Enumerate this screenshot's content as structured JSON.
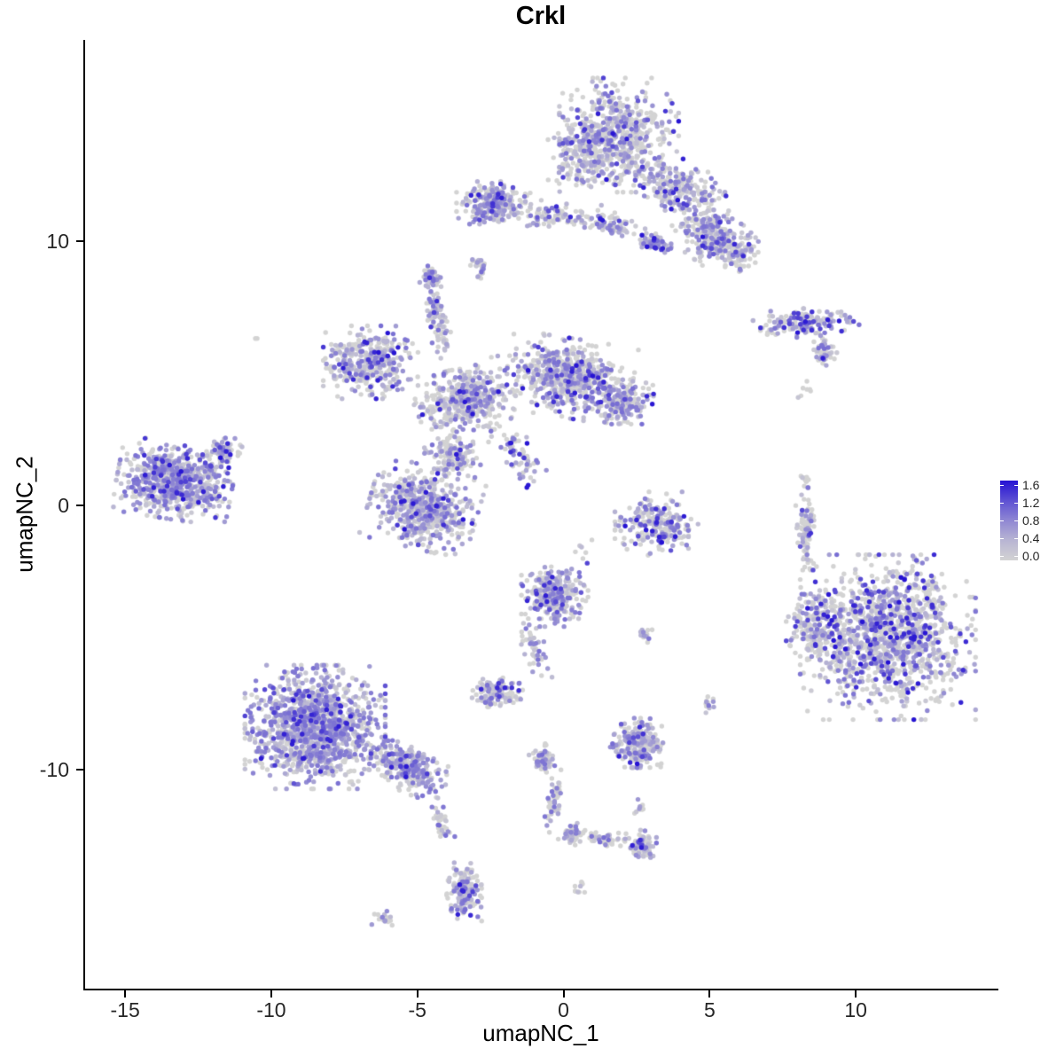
{
  "chart_data": {
    "type": "scatter",
    "title": "Crkl",
    "xlabel": "umapNC_1",
    "ylabel": "umapNC_2",
    "xlim": [
      -16.4,
      14.85
    ],
    "ylim": [
      -18.3,
      17.6
    ],
    "x_ticks": [
      -15,
      -10,
      -5,
      0,
      5,
      10
    ],
    "y_ticks": [
      -10,
      0,
      10
    ],
    "grid": false,
    "legend_position": "right",
    "color_scale": {
      "low_color": "#d3d3d3",
      "high_color": "#2512d3",
      "limits": [
        0.0,
        1.6
      ],
      "breaks": [
        1.6,
        1.2,
        0.8,
        0.4,
        0.0
      ]
    },
    "point_radius_px": 2.7,
    "seed": 20,
    "clusters": [
      {
        "name": "top-main",
        "cx": 1.9,
        "cy": 14.0,
        "rx": 1.7,
        "ry": 1.8,
        "rot": 0,
        "n": 550,
        "expr": [
          0.5,
          0.2,
          0.25,
          0.05
        ]
      },
      {
        "name": "top-west",
        "cx": 0.55,
        "cy": 13.3,
        "rx": 0.9,
        "ry": 1.2,
        "rot": 0,
        "n": 180,
        "expr": [
          0.55,
          0.2,
          0.2,
          0.05
        ]
      },
      {
        "name": "top-arm-upper",
        "cx": 4.0,
        "cy": 11.9,
        "rx": 1.4,
        "ry": 0.9,
        "rot": -30,
        "n": 230,
        "expr": [
          0.5,
          0.2,
          0.25,
          0.05
        ]
      },
      {
        "name": "top-arm-lower",
        "cx": 5.2,
        "cy": 10.1,
        "rx": 1.2,
        "ry": 0.9,
        "rot": -40,
        "n": 260,
        "expr": [
          0.45,
          0.2,
          0.3,
          0.05
        ]
      },
      {
        "name": "top-curl",
        "cx": 3.1,
        "cy": 9.9,
        "rx": 0.5,
        "ry": 0.3,
        "rot": -20,
        "n": 70,
        "expr": [
          0.2,
          0.2,
          0.45,
          0.15
        ]
      },
      {
        "name": "top-east-tip",
        "cx": 6.0,
        "cy": 9.5,
        "rx": 0.55,
        "ry": 0.5,
        "rot": 0,
        "n": 60,
        "expr": [
          0.5,
          0.25,
          0.2,
          0.05
        ]
      },
      {
        "name": "north-west-cluster",
        "cx": -2.4,
        "cy": 11.4,
        "rx": 1.05,
        "ry": 0.7,
        "rot": 0,
        "n": 250,
        "expr": [
          0.4,
          0.25,
          0.3,
          0.05
        ]
      },
      {
        "name": "north-bridge-west",
        "cx": -0.3,
        "cy": 11.0,
        "rx": 1.3,
        "ry": 0.45,
        "rot": -5,
        "n": 90,
        "expr": [
          0.55,
          0.2,
          0.2,
          0.05
        ]
      },
      {
        "name": "north-bridge-east",
        "cx": 1.6,
        "cy": 10.6,
        "rx": 1.0,
        "ry": 0.4,
        "rot": -10,
        "n": 70,
        "expr": [
          0.5,
          0.2,
          0.25,
          0.05
        ]
      },
      {
        "name": "small-north-dot",
        "cx": -2.9,
        "cy": 8.9,
        "rx": 0.3,
        "ry": 0.45,
        "rot": 0,
        "n": 28,
        "expr": [
          0.4,
          0.3,
          0.3,
          0
        ]
      },
      {
        "name": "right-strip",
        "cx": 8.3,
        "cy": 6.9,
        "rx": 1.5,
        "ry": 0.45,
        "rot": 5,
        "n": 160,
        "expr": [
          0.45,
          0.2,
          0.25,
          0.1
        ]
      },
      {
        "name": "right-strip-tail",
        "cx": 8.9,
        "cy": 5.8,
        "rx": 0.5,
        "ry": 0.4,
        "rot": -30,
        "n": 45,
        "expr": [
          0.5,
          0.2,
          0.25,
          0.05
        ]
      },
      {
        "name": "right-grey-dots",
        "cx": 8.3,
        "cy": 4.4,
        "rx": 0.25,
        "ry": 0.35,
        "rot": 0,
        "n": 7,
        "expr": [
          0.9,
          0.1,
          0,
          0
        ]
      },
      {
        "name": "mid-left-cluster",
        "cx": -6.6,
        "cy": 5.4,
        "rx": 1.35,
        "ry": 1.15,
        "rot": 0,
        "n": 380,
        "expr": [
          0.45,
          0.25,
          0.25,
          0.05
        ]
      },
      {
        "name": "center-main",
        "cx": 0.2,
        "cy": 4.8,
        "rx": 1.8,
        "ry": 1.25,
        "rot": -10,
        "n": 650,
        "expr": [
          0.5,
          0.2,
          0.25,
          0.05
        ]
      },
      {
        "name": "center-east-arm",
        "cx": 2.0,
        "cy": 3.9,
        "rx": 0.9,
        "ry": 0.7,
        "rot": 0,
        "n": 180,
        "expr": [
          0.45,
          0.2,
          0.3,
          0.05
        ]
      },
      {
        "name": "center-west",
        "cx": -3.4,
        "cy": 4.0,
        "rx": 1.4,
        "ry": 1.0,
        "rot": 20,
        "n": 420,
        "expr": [
          0.5,
          0.22,
          0.23,
          0.05
        ]
      },
      {
        "name": "center-arm-up",
        "cx": -4.3,
        "cy": 7.0,
        "rx": 0.35,
        "ry": 1.2,
        "rot": 10,
        "n": 90,
        "expr": [
          0.45,
          0.25,
          0.25,
          0.05
        ]
      },
      {
        "name": "arm-up-tip",
        "cx": -4.5,
        "cy": 8.6,
        "rx": 0.35,
        "ry": 0.4,
        "rot": 0,
        "n": 55,
        "expr": [
          0.3,
          0.25,
          0.4,
          0.05
        ]
      },
      {
        "name": "center-diag-arm",
        "cx": -1.6,
        "cy": 2.0,
        "rx": 0.5,
        "ry": 1.4,
        "rot": 35,
        "n": 70,
        "expr": [
          0.55,
          0.2,
          0.2,
          0.05
        ]
      },
      {
        "name": "center-south-blob",
        "cx": -4.8,
        "cy": -0.1,
        "rx": 1.55,
        "ry": 1.3,
        "rot": -15,
        "n": 620,
        "expr": [
          0.45,
          0.25,
          0.25,
          0.05
        ]
      },
      {
        "name": "center-link",
        "cx": -3.8,
        "cy": 1.9,
        "rx": 0.8,
        "ry": 0.8,
        "rot": 0,
        "n": 140,
        "expr": [
          0.5,
          0.25,
          0.2,
          0.05
        ]
      },
      {
        "name": "dark-dot-mid",
        "cx": -1.2,
        "cy": 0.7,
        "rx": 0.1,
        "ry": 0.1,
        "rot": 0,
        "n": 2,
        "expr": [
          0,
          0,
          0,
          1
        ]
      },
      {
        "name": "far-left-cluster",
        "cx": -13.3,
        "cy": 0.9,
        "rx": 1.65,
        "ry": 1.2,
        "rot": -10,
        "n": 720,
        "expr": [
          0.3,
          0.25,
          0.38,
          0.07
        ]
      },
      {
        "name": "far-left-nub",
        "cx": -11.6,
        "cy": 2.0,
        "rx": 0.5,
        "ry": 0.45,
        "rot": 0,
        "n": 70,
        "expr": [
          0.35,
          0.25,
          0.35,
          0.05
        ]
      },
      {
        "name": "east-c-cluster",
        "cx": 3.2,
        "cy": -0.7,
        "rx": 1.2,
        "ry": 1.0,
        "rot": 0,
        "n": 230,
        "expr": [
          0.5,
          0.2,
          0.22,
          0.08
        ]
      },
      {
        "name": "east-c-dark-edge",
        "cx": 3.3,
        "cy": -1.2,
        "rx": 0.5,
        "ry": 0.25,
        "rot": 0,
        "n": 18,
        "expr": [
          0.1,
          0.1,
          0.3,
          0.5
        ]
      },
      {
        "name": "mid-south-cluster",
        "cx": -0.3,
        "cy": -3.4,
        "rx": 0.95,
        "ry": 1.0,
        "rot": 0,
        "n": 300,
        "expr": [
          0.35,
          0.25,
          0.32,
          0.08
        ]
      },
      {
        "name": "mid-south-trail",
        "cx": -1.0,
        "cy": -5.5,
        "rx": 0.35,
        "ry": 1.0,
        "rot": 20,
        "n": 45,
        "expr": [
          0.5,
          0.25,
          0.25,
          0
        ]
      },
      {
        "name": "small-sw-cluster",
        "cx": -2.3,
        "cy": -7.1,
        "rx": 0.75,
        "ry": 0.55,
        "rot": 0,
        "n": 140,
        "expr": [
          0.45,
          0.3,
          0.22,
          0.03
        ]
      },
      {
        "name": "small-dot-east",
        "cx": 2.8,
        "cy": -4.9,
        "rx": 0.3,
        "ry": 0.25,
        "rot": 0,
        "n": 14,
        "expr": [
          0.5,
          0.25,
          0.25,
          0
        ]
      },
      {
        "name": "tiny-pair-se",
        "cx": 5.1,
        "cy": -7.5,
        "rx": 0.3,
        "ry": 0.3,
        "rot": 0,
        "n": 12,
        "expr": [
          0.3,
          0.3,
          0.4,
          0
        ]
      },
      {
        "name": "big-right-main",
        "cx": 11.1,
        "cy": -5.0,
        "rx": 2.5,
        "ry": 2.6,
        "rot": 0,
        "n": 1250,
        "expr": [
          0.52,
          0.18,
          0.2,
          0.1
        ]
      },
      {
        "name": "big-right-west-lobe",
        "cx": 8.7,
        "cy": -4.6,
        "rx": 0.9,
        "ry": 1.3,
        "rot": 0,
        "n": 200,
        "expr": [
          0.5,
          0.2,
          0.2,
          0.1
        ]
      },
      {
        "name": "right-satellite-strip",
        "cx": 8.3,
        "cy": -0.9,
        "rx": 0.3,
        "ry": 1.3,
        "rot": 0,
        "n": 90,
        "expr": [
          0.7,
          0.15,
          0.12,
          0.03
        ]
      },
      {
        "name": "right-tiny-top",
        "cx": 8.2,
        "cy": 0.9,
        "rx": 0.2,
        "ry": 0.3,
        "rot": 0,
        "n": 8,
        "expr": [
          0.8,
          0.2,
          0,
          0
        ]
      },
      {
        "name": "bottom-left-main",
        "cx": -8.5,
        "cy": -8.4,
        "rx": 2.0,
        "ry": 1.95,
        "rot": 0,
        "n": 1250,
        "expr": [
          0.3,
          0.25,
          0.38,
          0.07
        ]
      },
      {
        "name": "bottom-left-arm",
        "cx": -5.4,
        "cy": -9.9,
        "rx": 1.3,
        "ry": 0.75,
        "rot": -25,
        "n": 300,
        "expr": [
          0.35,
          0.25,
          0.35,
          0.05
        ]
      },
      {
        "name": "bottom-left-trail",
        "cx": -4.2,
        "cy": -11.9,
        "rx": 0.3,
        "ry": 1.0,
        "rot": 10,
        "n": 35,
        "expr": [
          0.5,
          0.25,
          0.25,
          0
        ]
      },
      {
        "name": "bottom-club",
        "cx": -3.4,
        "cy": -14.6,
        "rx": 0.5,
        "ry": 0.95,
        "rot": 0,
        "n": 170,
        "expr": [
          0.4,
          0.3,
          0.27,
          0.03
        ]
      },
      {
        "name": "tiny-bottom-left",
        "cx": -6.2,
        "cy": -15.6,
        "rx": 0.3,
        "ry": 0.25,
        "rot": 0,
        "n": 18,
        "expr": [
          0.6,
          0.2,
          0.2,
          0
        ]
      },
      {
        "name": "bottom-mid-top",
        "cx": -0.7,
        "cy": -9.6,
        "rx": 0.4,
        "ry": 0.5,
        "rot": 0,
        "n": 60,
        "expr": [
          0.4,
          0.3,
          0.3,
          0
        ]
      },
      {
        "name": "bottom-mid-trail",
        "cx": -0.3,
        "cy": -11.2,
        "rx": 0.25,
        "ry": 1.0,
        "rot": -10,
        "n": 45,
        "expr": [
          0.45,
          0.3,
          0.25,
          0
        ]
      },
      {
        "name": "bottom-mid-elbow",
        "cx": 0.3,
        "cy": -12.4,
        "rx": 0.4,
        "ry": 0.4,
        "rot": 0,
        "n": 45,
        "expr": [
          0.4,
          0.3,
          0.3,
          0
        ]
      },
      {
        "name": "bottom-arm-east",
        "cx": 1.5,
        "cy": -12.6,
        "rx": 0.8,
        "ry": 0.3,
        "rot": -10,
        "n": 40,
        "expr": [
          0.5,
          0.25,
          0.25,
          0
        ]
      },
      {
        "name": "bottom-east-tip",
        "cx": 2.7,
        "cy": -12.9,
        "rx": 0.4,
        "ry": 0.5,
        "rot": 0,
        "n": 80,
        "expr": [
          0.35,
          0.3,
          0.3,
          0.05
        ]
      },
      {
        "name": "tiny-bottom-mid",
        "cx": 0.6,
        "cy": -14.5,
        "rx": 0.25,
        "ry": 0.25,
        "rot": 0,
        "n": 10,
        "expr": [
          0.7,
          0.3,
          0,
          0
        ]
      },
      {
        "name": "se-cluster",
        "cx": 2.5,
        "cy": -9.0,
        "rx": 0.75,
        "ry": 0.78,
        "rot": 0,
        "n": 230,
        "expr": [
          0.35,
          0.25,
          0.35,
          0.05
        ]
      },
      {
        "name": "tiny-se-dot",
        "cx": 2.6,
        "cy": -11.5,
        "rx": 0.25,
        "ry": 0.3,
        "rot": 0,
        "n": 10,
        "expr": [
          0.5,
          0.25,
          0.25,
          0
        ]
      },
      {
        "name": "lone-grey-west",
        "cx": -10.5,
        "cy": 6.3,
        "rx": 0.08,
        "ry": 0.08,
        "rot": 0,
        "n": 2,
        "expr": [
          1,
          0,
          0,
          0
        ]
      },
      {
        "name": "sparse-mid",
        "cx": 0.4,
        "cy": -1.8,
        "rx": 0.8,
        "ry": 0.5,
        "rot": 0,
        "n": 6,
        "expr": [
          0.7,
          0.3,
          0,
          0
        ]
      }
    ]
  }
}
